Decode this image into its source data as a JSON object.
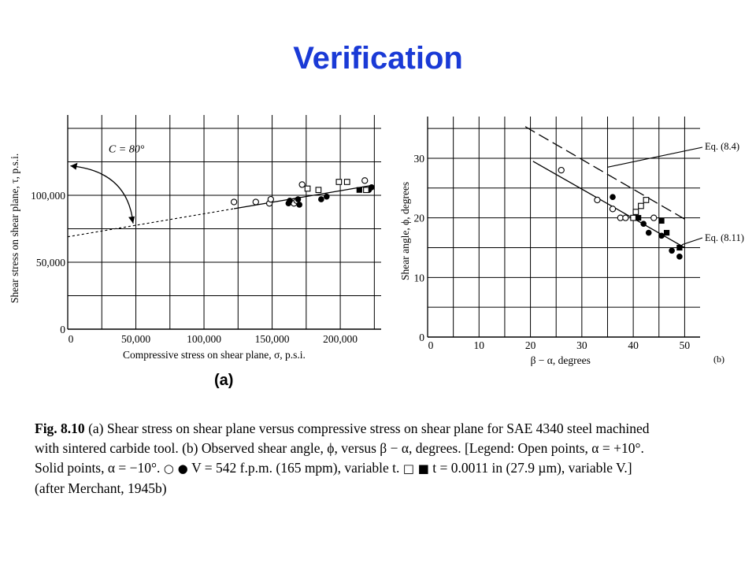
{
  "slide": {
    "title": "Verification"
  },
  "chart_data": [
    {
      "type": "scatter",
      "panel_label": "(a)",
      "xlabel": "Compressive stress on shear plane, σ, p.s.i.",
      "ylabel": "Shear stress on shear plane, τ, p.s.i.",
      "xlim": [
        0,
        230000
      ],
      "ylim": [
        0,
        160000
      ],
      "xticks": [
        0,
        50000,
        100000,
        150000,
        200000
      ],
      "xtick_labels": [
        "0",
        "50,000",
        "100,000",
        "150,000",
        "200,000"
      ],
      "yticks": [
        0,
        50000,
        100000
      ],
      "ytick_labels": [
        "0",
        "50,000",
        "100,000"
      ],
      "grid": true,
      "annotation": "C = 80°",
      "fit_line": {
        "intercept": 69000,
        "slope": 0.172,
        "x_range": [
          0,
          222000
        ]
      },
      "series": [
        {
          "marker": "open-circle",
          "points": [
            [
              122000,
              95000
            ],
            [
              138000,
              95000
            ],
            [
              148000,
              94000
            ],
            [
              149000,
              97000
            ],
            [
              166000,
              94000
            ],
            [
              168000,
              96000
            ],
            [
              172000,
              108000
            ],
            [
              218000,
              111000
            ]
          ]
        },
        {
          "marker": "solid-circle",
          "points": [
            [
              162000,
              94000
            ],
            [
              163000,
              96000
            ],
            [
              169000,
              97000
            ],
            [
              170000,
              93000
            ],
            [
              186000,
              97000
            ],
            [
              190000,
              99000
            ],
            [
              221000,
              104000
            ],
            [
              223000,
              106000
            ]
          ]
        },
        {
          "marker": "open-square",
          "points": [
            [
              176000,
              105000
            ],
            [
              184000,
              104000
            ],
            [
              199000,
              110000
            ],
            [
              205000,
              110000
            ],
            [
              219000,
              104000
            ]
          ]
        },
        {
          "marker": "solid-square",
          "points": [
            [
              214000,
              104000
            ]
          ]
        }
      ]
    },
    {
      "type": "scatter",
      "panel_label": "(b)",
      "xlabel": "β − α, degrees",
      "ylabel": "Shear angle, ϕ, degrees",
      "xlim": [
        0,
        53
      ],
      "ylim": [
        0,
        37
      ],
      "xticks": [
        0,
        10,
        20,
        30,
        40,
        50
      ],
      "xtick_labels": [
        "0",
        "10",
        "20",
        "30",
        "40",
        "50"
      ],
      "yticks": [
        0,
        10,
        20,
        30
      ],
      "ytick_labels": [
        "0",
        "10",
        "20",
        "30"
      ],
      "grid": true,
      "lines": [
        {
          "name": "Eq. (8.4)",
          "style": "dashed",
          "x": [
            19,
            50
          ],
          "y": [
            35.3,
            19.8
          ]
        },
        {
          "name": "Eq. (8.11)",
          "style": "solid",
          "x": [
            20.5,
            50
          ],
          "y": [
            29.5,
            15
          ]
        }
      ],
      "series": [
        {
          "marker": "open-circle",
          "points": [
            [
              26,
              28
            ],
            [
              33,
              23
            ],
            [
              36,
              21.5
            ],
            [
              37.5,
              20
            ],
            [
              38.5,
              20
            ],
            [
              44,
              20
            ]
          ]
        },
        {
          "marker": "solid-circle",
          "points": [
            [
              36,
              23.5
            ],
            [
              40.5,
              20
            ],
            [
              42,
              19
            ],
            [
              43,
              17.5
            ],
            [
              45.5,
              17
            ],
            [
              47.5,
              14.5
            ],
            [
              49,
              13.5
            ]
          ]
        },
        {
          "marker": "open-square",
          "points": [
            [
              40,
              20
            ],
            [
              40.5,
              21
            ],
            [
              41.5,
              22
            ],
            [
              42.5,
              23
            ]
          ]
        },
        {
          "marker": "solid-square",
          "points": [
            [
              41,
              20
            ],
            [
              45.5,
              19.5
            ],
            [
              46.5,
              17.5
            ],
            [
              49,
              15
            ]
          ]
        }
      ]
    }
  ],
  "caption": {
    "lead": "Fig. 8.10",
    "line1": " (a) Shear stress on shear plane versus compressive stress on shear plane for SAE 4340 steel machined",
    "line2": "with sintered carbide tool. (b) Observed shear angle, ϕ, versus β − α, degrees. [Legend: Open points, α = +10°.",
    "line3a": "Solid points, α = −10°.",
    "sym1": "○ ●",
    "line3b": " V = 542 f.p.m. (165 mpm), variable t.",
    "sym2": "□ ■",
    "line3c": " t = 0.0011 in (27.9 µm), variable V.]",
    "line4": "(after Merchant, 1945b)"
  }
}
